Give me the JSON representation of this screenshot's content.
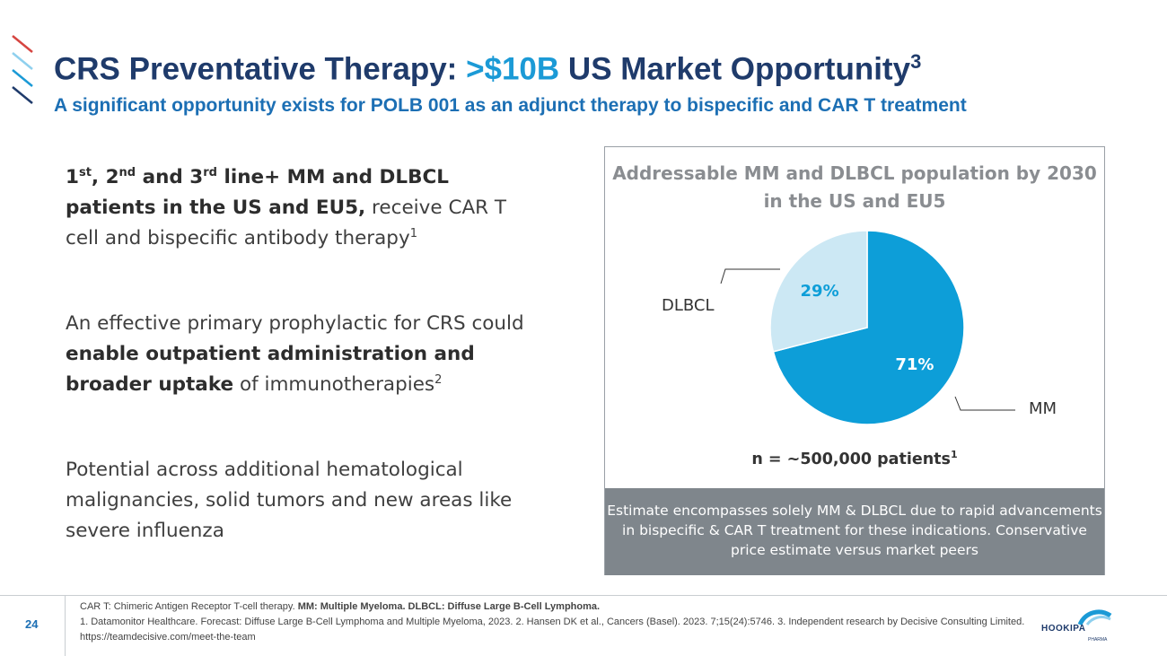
{
  "header": {
    "title_pre": "CRS Preventative Therapy: ",
    "title_accent": ">$10B",
    "title_post": " US Market Opportunity",
    "title_sup": "3",
    "subtitle": "A significant opportunity exists for POLB 001 as an adjunct therapy to bispecific and CAR T treatment"
  },
  "bullets": {
    "b1": {
      "p1": "1",
      "s1": "st",
      "p2": ", 2",
      "s2": "nd",
      "p3": " and 3",
      "s3": "rd",
      "p4": " line+ MM and DLBCL patients in the US and EU5,",
      "rest": " receive CAR T cell and bispecific antibody therapy",
      "sup": "1"
    },
    "b2": {
      "t1": "An effective primary prophylactic for CRS could ",
      "b": "enable outpatient administration and broader uptake",
      "t2": " of immunotherapies",
      "sup": "2"
    },
    "b3": "Potential across additional hematological malignancies, solid tumors and new areas like severe influenza"
  },
  "chart_data": {
    "type": "pie",
    "title": "Addressable MM and DLBCL population by 2030 in the US and EU5",
    "labels": [
      "MM",
      "DLBCL"
    ],
    "values": [
      71,
      29
    ],
    "data_labels": [
      "71%",
      "29%"
    ],
    "colors": [
      "#0d9ed8",
      "#cce8f4"
    ],
    "label_colors": [
      "#ffffff",
      "#0d9ed8"
    ],
    "n_text": "n = ~500,000 patients",
    "n_sup": "1"
  },
  "estimate_text": "Estimate encompasses solely MM & DLBCL due to rapid advancements in bispecific & CAR T treatment for these indications. Conservative price estimate versus market peers",
  "footer": {
    "page_number": "24",
    "line1_a": "CAR T: Chimeric Antigen Receptor T-cell therapy. ",
    "line1_b": "MM: Multiple Myeloma. DLBCL: Diffuse Large B-Cell Lymphoma.",
    "line2": "1. Datamonitor Healthcare. Forecast: Diffuse Large B-Cell Lymphoma and Multiple Myeloma, 2023. 2. Hansen DK et al., Cancers (Basel). 2023. 7;15(24):5746. 3. Independent research by Decisive Consulting Limited. https://teamdecisive.com/meet-the-team",
    "logo_text": "HOOKIPA",
    "logo_sub": "PHARMA"
  },
  "colors": {
    "navy": "#1f3b6b",
    "accent": "#1b9ad6",
    "deco_red": "#d64541",
    "deco_light": "#8fd0ee",
    "deco_mid": "#1b9ad6",
    "deco_dark": "#1f3b6b"
  }
}
